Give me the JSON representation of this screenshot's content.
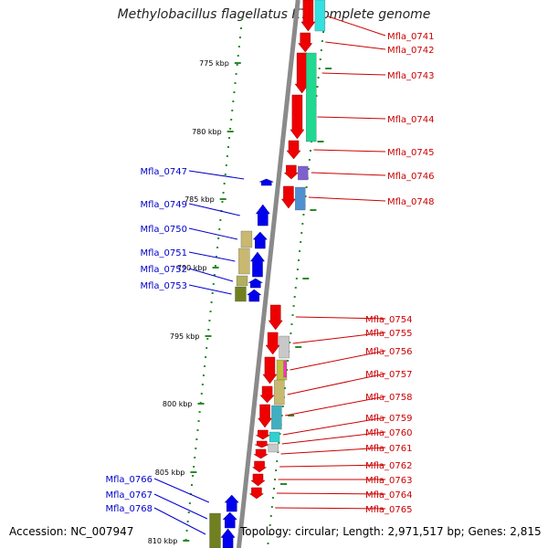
{
  "title": "Methylobacillus flagellatus KT, complete genome",
  "accession": "Accession: NC_007947",
  "topology": "Topology: circular; Length: 2,971,517 bp; Genes: 2,815",
  "ticks": [
    "775 kbp",
    "780 kbp",
    "785 kbp",
    "790 kbp",
    "795 kbp",
    "800 kbp",
    "805 kbp",
    "810 kbp"
  ],
  "genes_right": [
    "Mfla_0741",
    "Mfla_0742",
    "Mfla_0743",
    "Mfla_0744",
    "Mfla_0745",
    "Mfla_0746",
    "Mfla_0748",
    "Mfla_0754",
    "Mfla_0755",
    "Mfla_0756",
    "Mfla_0757",
    "Mfla_0758",
    "Mfla_0759",
    "Mfla_0760",
    "Mfla_0761",
    "Mfla_0762",
    "Mfla_0763",
    "Mfla_0764",
    "Mfla_0765"
  ],
  "genes_left": [
    "Mfla_0747",
    "Mfla_0749",
    "Mfla_0750",
    "Mfla_0751",
    "Mfla_0752",
    "Mfla_0753",
    "Mfla_0766",
    "Mfla_0767",
    "Mfla_0768"
  ],
  "colors": {
    "forward": "#ee0000",
    "reverse": "#0000ee",
    "backbone": "#8a8a8a",
    "tick_dot": "#2a8a2a",
    "label_right": "#cc0000",
    "label_left": "#0000cc"
  }
}
